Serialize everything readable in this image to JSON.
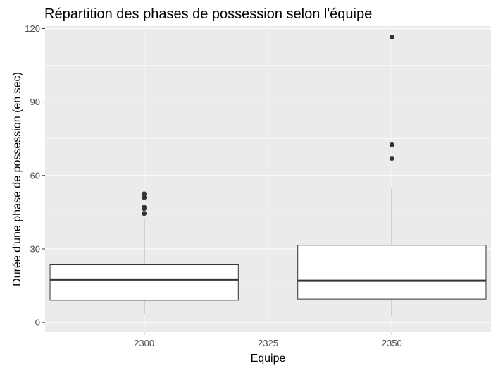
{
  "chart_data": {
    "type": "boxplot",
    "title": "Répartition des phases de possession selon l'équipe",
    "xlabel": "Equipe",
    "ylabel": "Durée d'une phase de possession (en sec)",
    "xlim": [
      2280,
      2370
    ],
    "ylim": [
      -4,
      121
    ],
    "x_ticks": [
      2300,
      2325,
      2350
    ],
    "y_ticks": [
      0,
      30,
      60,
      90,
      120
    ],
    "grid": true,
    "legend": "none",
    "series": [
      {
        "x": 2300,
        "box_width": 38,
        "whisker_low": 3.5,
        "q1": 9,
        "median": 17.5,
        "q3": 23.5,
        "whisker_high": 42.5,
        "outliers": [
          44.5,
          46.5,
          47,
          51,
          52.5
        ]
      },
      {
        "x": 2350,
        "box_width": 38,
        "whisker_low": 2.5,
        "q1": 9.5,
        "median": 17,
        "q3": 31.5,
        "whisker_high": 54.5,
        "outliers": [
          67,
          72.5,
          116.5
        ]
      }
    ],
    "colors": {
      "panel": "#ebebeb",
      "grid": "#ffffff",
      "box_fill": "#ffffff",
      "box_stroke": "#333333",
      "outlier": "#333333"
    }
  }
}
